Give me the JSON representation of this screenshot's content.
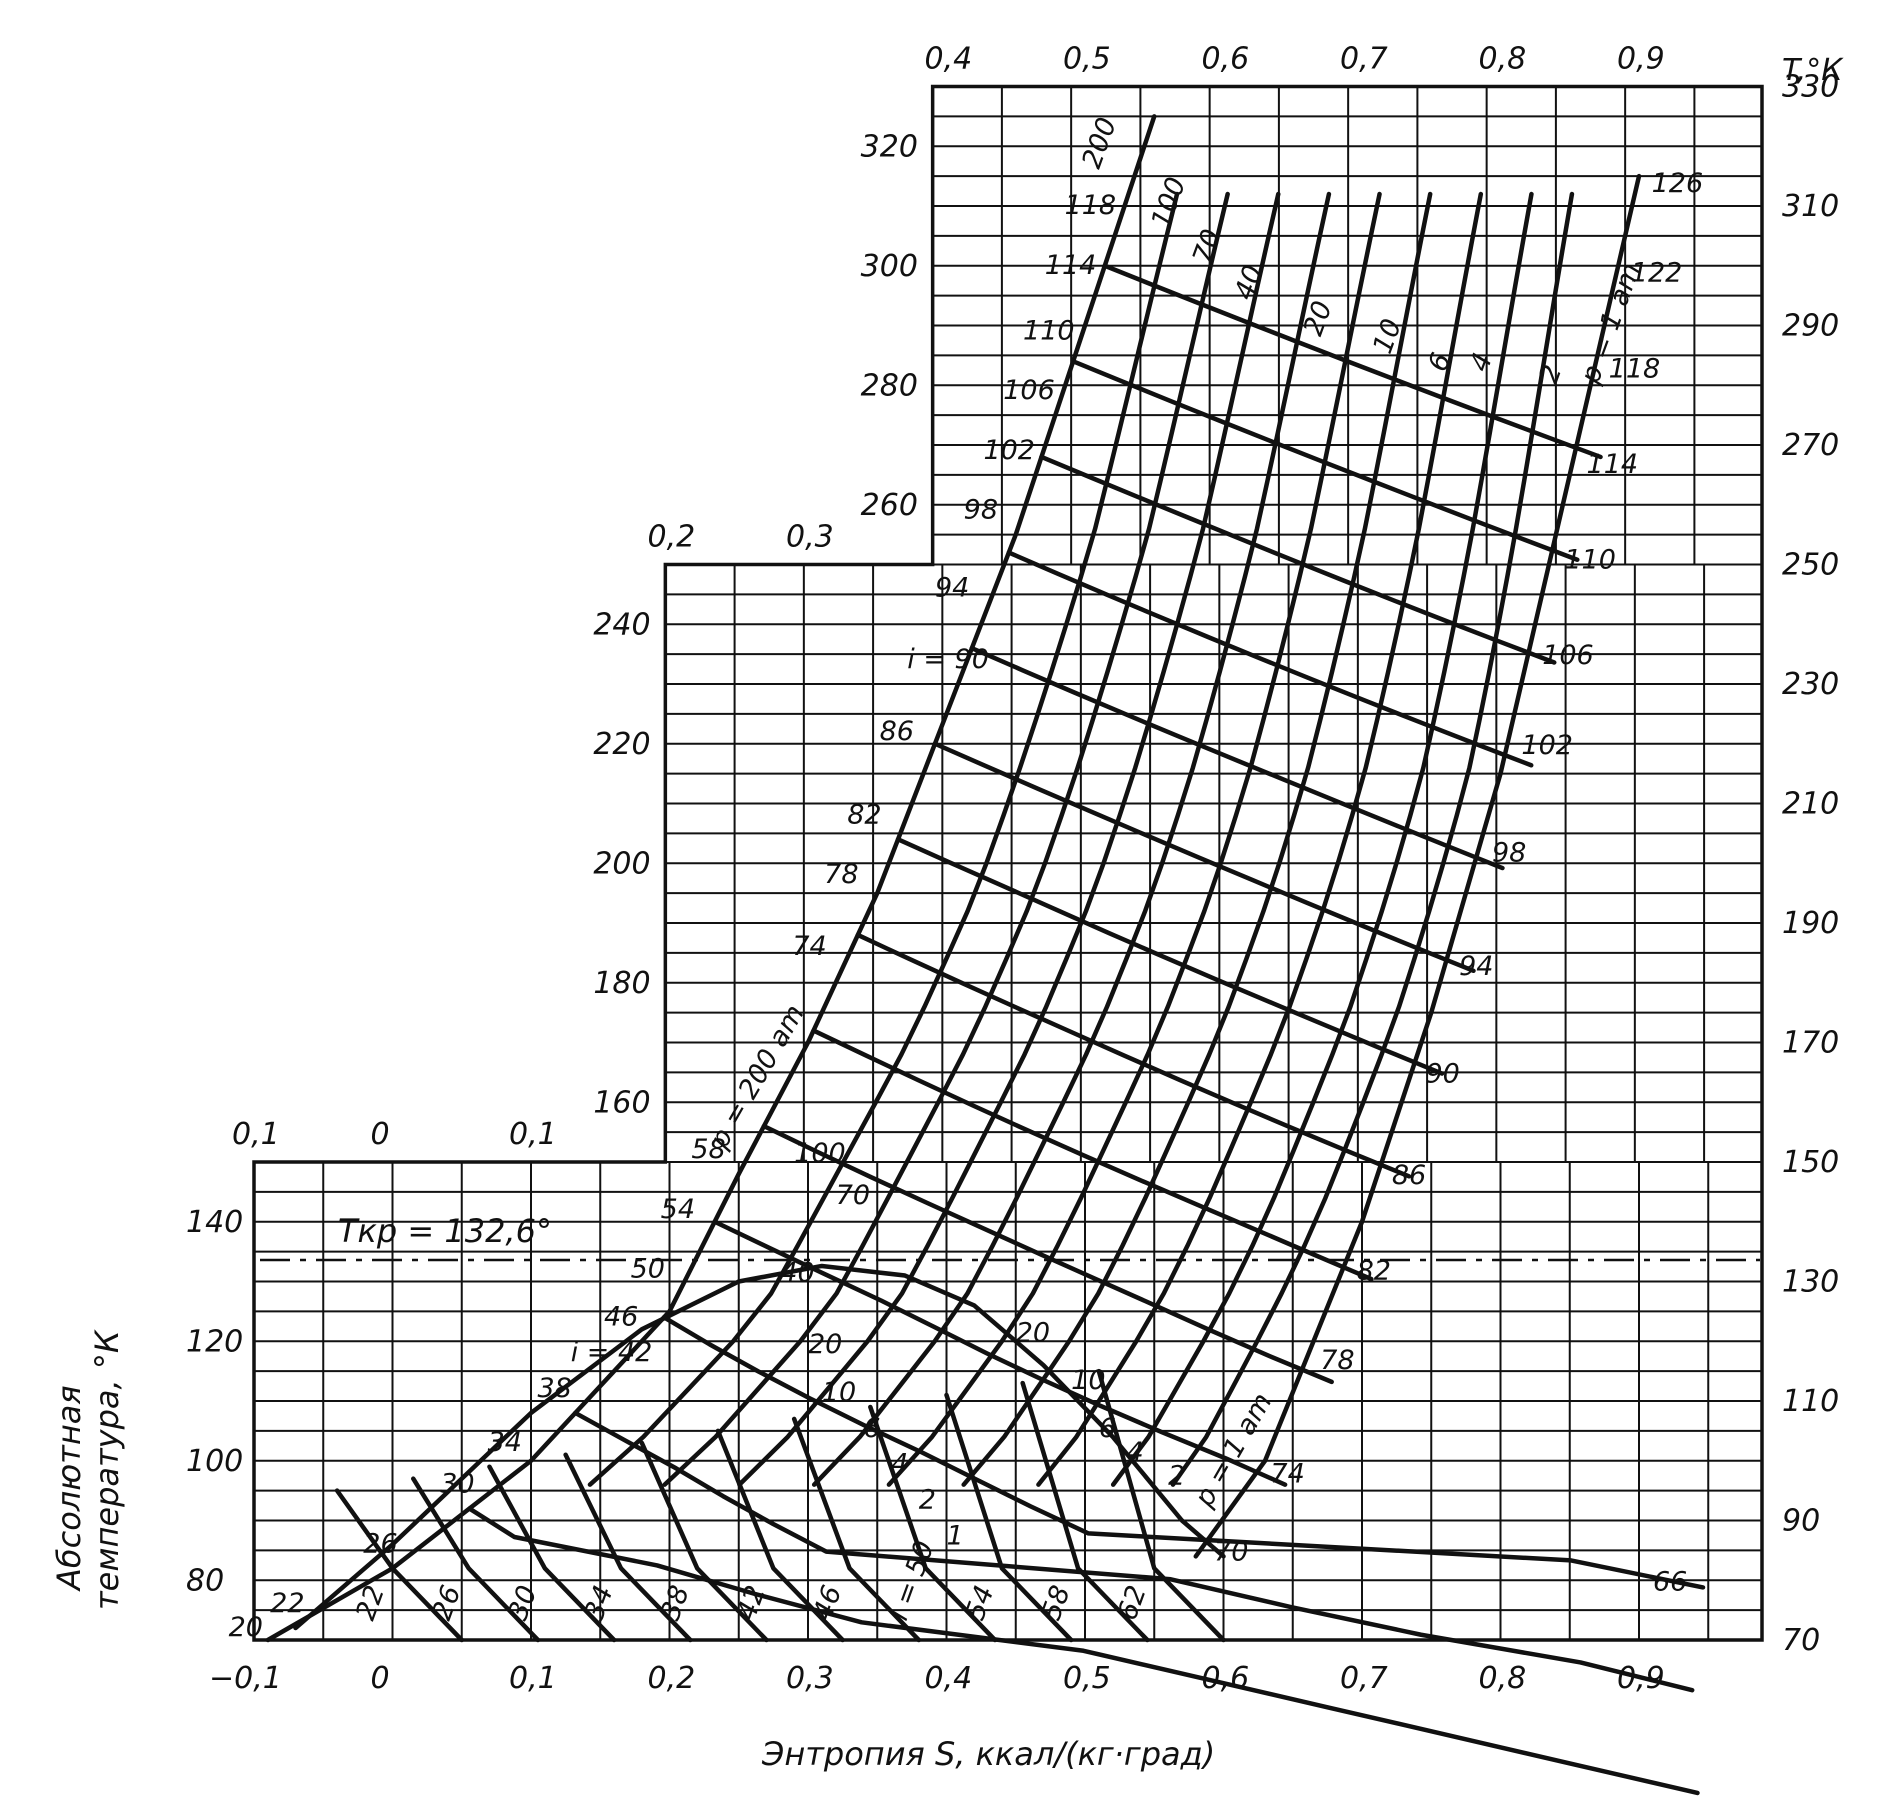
{
  "chart_data": {
    "type": "line",
    "xlabel": "Энтропия S, ккал/(кг·град)",
    "ylabel_line1": "Абсолютная",
    "ylabel_line2": "температура, °К",
    "right_axis_title": "T,°К",
    "bottom_x_ticks": [
      "−0,1",
      "0",
      "0,1",
      "0,2",
      "0,3",
      "0,4",
      "0,5",
      "0,6",
      "0,7",
      "0,8",
      "0,9"
    ],
    "step1_x_ticks": [
      "0,1",
      "0",
      "0,1"
    ],
    "step2_x_ticks": [
      "0,2",
      "0,3"
    ],
    "step3_x_ticks": [
      "0,4",
      "0,5",
      "0,6",
      "0,7",
      "0,8",
      "0,9"
    ],
    "left_y_ticks_low": [
      "80",
      "100",
      "120",
      "140"
    ],
    "left_y_ticks_mid": [
      "160",
      "180",
      "200",
      "220",
      "240"
    ],
    "left_y_ticks_high": [
      "260",
      "280",
      "300",
      "320"
    ],
    "right_y_ticks": [
      "70",
      "90",
      "110",
      "130",
      "150",
      "170",
      "190",
      "210",
      "230",
      "250",
      "270",
      "290",
      "310",
      "330"
    ],
    "critical_label": "Tкр = 132,6°",
    "critical_temperature": 132.6,
    "ylim": [
      70,
      330
    ],
    "left_boundary_labels": [
      "20",
      "22",
      "26",
      "30",
      "34",
      "38",
      "i = 42",
      "46",
      "50",
      "54",
      "58",
      "74",
      "78",
      "82",
      "86",
      "i = 90",
      "94",
      "98",
      "102",
      "106",
      "110",
      "114",
      "118"
    ],
    "right_boundary_labels": [
      "66",
      "70",
      "74",
      "78",
      "82",
      "86",
      "90",
      "94",
      "98",
      "102",
      "106",
      "110",
      "114",
      "118",
      "122",
      "126"
    ],
    "bottom_enthalpy_labels": [
      "22",
      "26",
      "30",
      "34",
      "38",
      "42",
      "46",
      "i = 50",
      "54",
      "58",
      "62"
    ],
    "pressure_labels_upper": [
      "200",
      "100",
      "70",
      "40",
      "20",
      "10",
      "6",
      "4",
      "2",
      "p = 1 am"
    ],
    "pressure_labels_lower": [
      "p = 200 am",
      "100",
      "70",
      "40",
      "20",
      "10",
      "6",
      "4",
      "2",
      "1",
      "20",
      "10",
      "6",
      "4",
      "2",
      "p = 1 am"
    ],
    "series": [
      {
        "name": "p = 200 am",
        "x": [
          -0.09,
          0.0,
          0.1,
          0.2,
          0.25,
          0.3,
          0.35,
          0.4,
          0.45,
          0.5,
          0.55
        ],
        "y": [
          70,
          82,
          100,
          125,
          148,
          170,
          195,
          225,
          255,
          290,
          325
        ]
      },
      {
        "name": "p = 1 am",
        "x": [
          0.58,
          0.63,
          0.7,
          0.75,
          0.8,
          0.85,
          0.9
        ],
        "y": [
          84,
          100,
          140,
          175,
          215,
          265,
          315
        ]
      }
    ]
  }
}
